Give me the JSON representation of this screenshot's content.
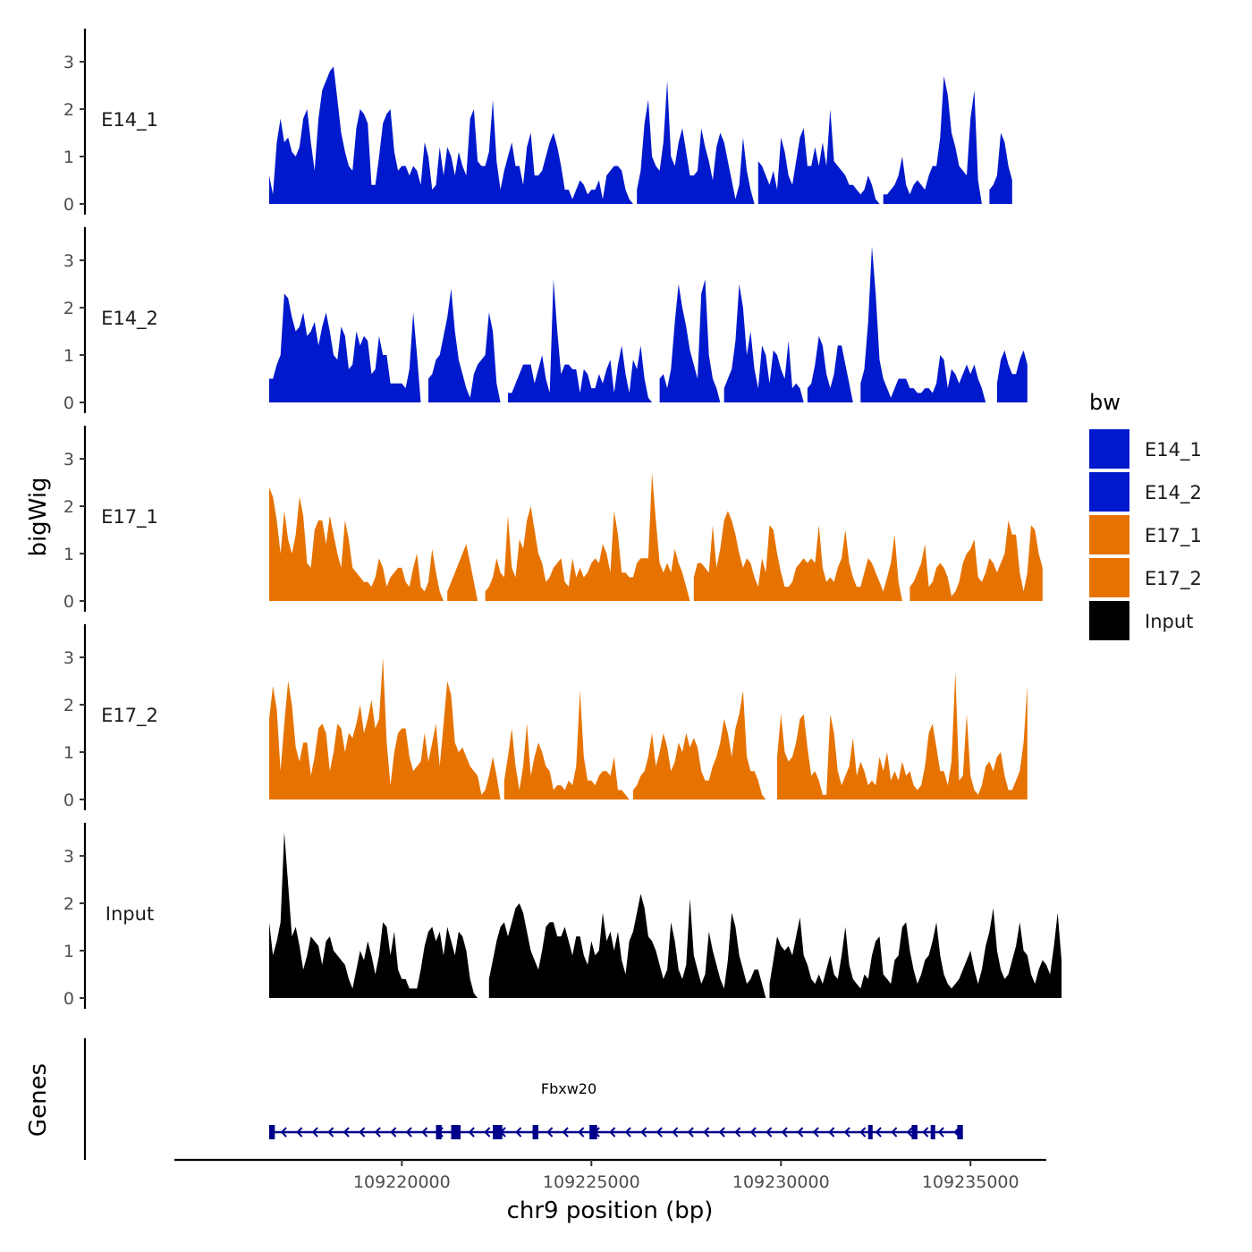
{
  "chart_data": {
    "type": "area",
    "ylabel": "bigWig",
    "xlabel": "chr9 position (bp)",
    "y_ticks": [
      "0",
      "1",
      "2",
      "3"
    ],
    "ylim": [
      0,
      3.7
    ],
    "xlim": [
      109214000,
      109237000
    ],
    "x_ticks": [
      109220000,
      109225000,
      109230000,
      109235000
    ],
    "x_tick_labels": [
      "109220000",
      "109225000",
      "109230000",
      "109235000"
    ],
    "x_step_bp": 100,
    "legend": {
      "title": "bw"
    },
    "colors": {
      "E14": "#0019cc",
      "E17": "#e67300",
      "Input": "#000000",
      "gene": "#00008b"
    },
    "series": [
      {
        "name": "E14_1",
        "color": "#0019cc",
        "x_start": 109216500,
        "values": [
          0.6,
          0.2,
          1.3,
          1.8,
          1.3,
          1.4,
          1.1,
          1.0,
          1.2,
          1.8,
          2.0,
          1.3,
          0.7,
          1.8,
          2.4,
          2.6,
          2.8,
          2.9,
          2.2,
          1.5,
          1.1,
          0.8,
          0.7,
          1.6,
          2.0,
          1.9,
          1.7,
          0.4,
          0.4,
          1.0,
          1.7,
          1.9,
          2.0,
          1.1,
          0.7,
          0.8,
          0.8,
          0.6,
          0.8,
          0.7,
          0.4,
          1.3,
          1.0,
          0.3,
          0.4,
          1.2,
          0.6,
          1.2,
          1.0,
          0.6,
          1.1,
          0.8,
          0.6,
          1.8,
          2.0,
          0.9,
          0.8,
          0.8,
          1.1,
          2.2,
          0.9,
          0.3,
          0.7,
          1.0,
          1.3,
          0.8,
          0.8,
          0.4,
          1.2,
          1.5,
          0.6,
          0.6,
          0.7,
          1.0,
          1.3,
          1.5,
          1.2,
          0.8,
          0.3,
          0.3,
          0.1,
          0.3,
          0.5,
          0.4,
          0.2,
          0.3,
          0.3,
          0.5,
          0.1,
          0.6,
          0.7,
          0.8,
          0.8,
          0.7,
          0.3,
          0.1,
          0.0,
          0.3,
          0.7,
          1.7,
          2.2,
          1.0,
          0.8,
          0.7,
          1.3,
          2.6,
          1.0,
          0.8,
          1.3,
          1.6,
          1.1,
          0.6,
          0.6,
          0.7,
          1.6,
          1.2,
          0.9,
          0.5,
          1.2,
          1.5,
          1.3,
          0.9,
          0.5,
          0.1,
          0.4,
          1.4,
          0.7,
          0.3,
          0.0,
          0.9,
          0.8,
          0.6,
          0.4,
          0.7,
          0.3,
          1.4,
          1.1,
          0.6,
          0.4,
          0.9,
          1.4,
          1.6,
          0.8,
          0.8,
          1.2,
          0.8,
          1.3,
          0.8,
          2.0,
          0.9,
          0.8,
          0.7,
          0.6,
          0.4,
          0.4,
          0.3,
          0.2,
          0.3,
          0.6,
          0.4,
          0.1,
          0.0,
          0.2,
          0.2,
          0.3,
          0.4,
          0.6,
          1.0,
          0.4,
          0.2,
          0.4,
          0.5,
          0.4,
          0.3,
          0.6,
          0.8,
          0.8,
          1.4,
          2.7,
          2.3,
          1.5,
          1.2,
          0.8,
          0.7,
          0.6,
          1.8,
          2.4,
          0.5,
          0.0,
          0.0,
          0.3,
          0.4,
          0.6,
          1.5,
          1.3,
          0.8,
          0.5
        ]
      },
      {
        "name": "E14_2",
        "color": "#0019cc",
        "x_start": 109216500,
        "values": [
          0.5,
          0.5,
          0.8,
          1.0,
          2.3,
          2.2,
          1.8,
          1.5,
          1.6,
          1.9,
          1.4,
          1.5,
          1.7,
          1.2,
          1.6,
          1.9,
          1.5,
          1.0,
          0.9,
          1.6,
          1.4,
          0.7,
          0.8,
          1.5,
          1.2,
          1.4,
          1.3,
          0.6,
          0.7,
          1.4,
          1.0,
          1.0,
          0.4,
          0.4,
          0.4,
          0.4,
          0.3,
          0.7,
          1.9,
          1.0,
          0.0,
          0.0,
          0.5,
          0.6,
          0.9,
          1.0,
          1.4,
          1.8,
          2.4,
          1.5,
          0.9,
          0.6,
          0.3,
          0.1,
          0.6,
          0.8,
          0.9,
          1.0,
          1.9,
          1.5,
          0.4,
          0.0,
          0.0,
          0.2,
          0.2,
          0.4,
          0.6,
          0.8,
          0.8,
          0.8,
          0.4,
          0.7,
          1.0,
          0.5,
          0.2,
          2.6,
          1.5,
          0.6,
          0.8,
          0.8,
          0.7,
          0.7,
          0.2,
          0.7,
          0.6,
          0.3,
          0.3,
          0.6,
          0.4,
          0.7,
          0.9,
          0.2,
          0.8,
          1.2,
          0.6,
          0.2,
          0.9,
          0.7,
          1.2,
          0.5,
          0.1,
          0.0,
          0.0,
          0.5,
          0.6,
          0.3,
          0.7,
          1.7,
          2.5,
          2.0,
          1.6,
          1.1,
          0.8,
          0.5,
          2.3,
          2.6,
          1.0,
          0.5,
          0.3,
          0.0,
          0.3,
          0.5,
          0.7,
          1.3,
          2.5,
          2.0,
          1.0,
          1.5,
          0.7,
          0.3,
          1.2,
          1.0,
          0.4,
          1.1,
          1.0,
          0.7,
          0.5,
          1.3,
          0.3,
          0.4,
          0.3,
          0.0,
          0.3,
          0.4,
          0.8,
          1.4,
          1.2,
          0.6,
          0.3,
          0.6,
          1.2,
          1.2,
          0.8,
          0.4,
          0.0,
          0.0,
          0.4,
          0.7,
          1.7,
          3.3,
          2.3,
          0.9,
          0.5,
          0.3,
          0.1,
          0.3,
          0.5,
          0.5,
          0.5,
          0.3,
          0.3,
          0.2,
          0.2,
          0.3,
          0.3,
          0.2,
          0.4,
          1.0,
          0.9,
          0.3,
          0.7,
          0.6,
          0.4,
          0.6,
          0.8,
          0.6,
          0.8,
          0.5,
          0.3,
          0.0,
          0.0,
          0.0,
          0.4,
          0.9,
          1.1,
          0.8,
          0.6,
          0.6,
          0.9,
          1.1,
          0.8
        ]
      },
      {
        "name": "E17_1",
        "color": "#e67300",
        "x_start": 109216500,
        "values": [
          2.4,
          2.2,
          1.7,
          1.0,
          1.9,
          1.3,
          1.0,
          1.4,
          2.2,
          1.8,
          0.8,
          0.7,
          1.5,
          1.7,
          1.7,
          1.2,
          1.8,
          1.4,
          1.0,
          0.7,
          1.7,
          1.3,
          0.7,
          0.6,
          0.5,
          0.4,
          0.4,
          0.3,
          0.5,
          0.9,
          0.7,
          0.3,
          0.5,
          0.6,
          0.7,
          0.7,
          0.4,
          0.3,
          0.7,
          1.0,
          0.3,
          0.2,
          0.4,
          1.1,
          0.6,
          0.2,
          0.0,
          0.2,
          0.4,
          0.6,
          0.8,
          1.0,
          1.2,
          0.8,
          0.4,
          0.0,
          0.0,
          0.2,
          0.3,
          0.5,
          0.9,
          0.6,
          0.5,
          1.8,
          0.7,
          0.5,
          1.3,
          1.1,
          1.7,
          2.0,
          1.5,
          1.0,
          0.8,
          0.4,
          0.5,
          0.7,
          0.8,
          0.9,
          0.4,
          0.3,
          0.9,
          0.5,
          0.7,
          0.5,
          0.6,
          0.8,
          0.9,
          0.8,
          1.2,
          1.0,
          0.6,
          1.9,
          1.4,
          0.6,
          0.6,
          0.5,
          0.5,
          0.8,
          0.9,
          0.9,
          0.9,
          2.7,
          1.7,
          0.8,
          0.6,
          0.8,
          0.6,
          1.1,
          0.8,
          0.6,
          0.3,
          0.0,
          0.5,
          0.8,
          0.8,
          0.7,
          0.6,
          1.6,
          0.7,
          1.1,
          1.7,
          1.9,
          1.7,
          1.4,
          1.0,
          0.7,
          0.9,
          0.8,
          0.5,
          0.3,
          0.9,
          0.6,
          1.6,
          1.5,
          1.0,
          0.6,
          0.3,
          0.3,
          0.4,
          0.7,
          0.8,
          0.9,
          0.8,
          0.9,
          0.8,
          1.6,
          0.7,
          0.4,
          0.5,
          0.4,
          0.7,
          0.9,
          1.5,
          0.8,
          0.5,
          0.3,
          0.3,
          0.6,
          0.9,
          0.8,
          0.6,
          0.4,
          0.2,
          0.5,
          0.8,
          1.4,
          0.4,
          0.0,
          0.0,
          0.3,
          0.4,
          0.6,
          0.8,
          1.2,
          0.3,
          0.4,
          0.7,
          0.8,
          0.7,
          0.5,
          0.1,
          0.2,
          0.4,
          0.8,
          1.0,
          1.1,
          1.3,
          0.5,
          0.4,
          0.6,
          0.9,
          0.8,
          0.6,
          0.8,
          1.0,
          1.7,
          1.4,
          1.4,
          0.6,
          0.2,
          0.6,
          1.6,
          1.5,
          1.0,
          0.7
        ]
      },
      {
        "name": "E17_2",
        "color": "#e67300",
        "x_start": 109216500,
        "values": [
          1.7,
          2.4,
          1.9,
          0.6,
          1.6,
          2.5,
          2.0,
          1.1,
          0.8,
          1.2,
          1.2,
          0.5,
          0.9,
          1.5,
          1.6,
          1.4,
          0.6,
          1.0,
          1.6,
          1.5,
          1.0,
          1.4,
          1.3,
          1.6,
          2.0,
          1.4,
          1.7,
          2.1,
          1.5,
          1.7,
          3.0,
          1.2,
          0.3,
          1.0,
          1.4,
          1.5,
          1.5,
          0.9,
          0.6,
          0.7,
          0.8,
          1.4,
          0.8,
          1.2,
          1.6,
          0.7,
          1.6,
          2.5,
          2.2,
          1.2,
          1.0,
          1.1,
          0.9,
          0.7,
          0.6,
          0.5,
          0.1,
          0.2,
          0.5,
          0.9,
          0.5,
          0.0,
          0.4,
          0.9,
          1.5,
          0.7,
          0.2,
          0.7,
          1.6,
          0.5,
          0.9,
          1.2,
          1.0,
          0.7,
          0.6,
          0.2,
          0.3,
          0.3,
          0.2,
          0.4,
          0.3,
          0.7,
          2.3,
          0.9,
          0.4,
          0.4,
          0.3,
          0.5,
          0.6,
          0.6,
          0.5,
          0.9,
          0.2,
          0.2,
          0.1,
          0.0,
          0.2,
          0.3,
          0.5,
          0.6,
          0.9,
          1.4,
          0.7,
          1.0,
          1.4,
          1.1,
          0.6,
          0.8,
          1.2,
          1.0,
          1.4,
          1.1,
          1.3,
          1.1,
          0.6,
          0.4,
          0.4,
          0.7,
          0.9,
          1.2,
          1.7,
          1.4,
          0.9,
          1.5,
          1.8,
          2.3,
          0.9,
          0.6,
          0.6,
          0.4,
          0.1,
          0.0,
          0.0,
          0.0,
          0.9,
          1.8,
          1.0,
          0.8,
          0.9,
          1.2,
          1.7,
          1.8,
          1.1,
          0.5,
          0.6,
          0.4,
          0.1,
          0.1,
          1.8,
          1.4,
          0.6,
          0.3,
          0.5,
          0.7,
          1.3,
          0.5,
          0.8,
          0.6,
          0.3,
          0.4,
          0.3,
          0.9,
          0.6,
          1.0,
          0.4,
          0.6,
          0.4,
          0.8,
          0.5,
          0.6,
          0.3,
          0.2,
          0.3,
          0.7,
          1.4,
          1.6,
          1.1,
          0.6,
          0.6,
          0.3,
          0.8,
          2.7,
          0.4,
          0.5,
          1.8,
          0.5,
          0.2,
          0.1,
          0.3,
          0.7,
          0.8,
          0.6,
          0.9,
          1.0,
          0.5,
          0.2,
          0.2,
          0.4,
          0.6,
          1.2,
          2.4
        ]
      },
      {
        "name": "Input",
        "color": "#000000",
        "x_start": 109216500,
        "values": [
          1.6,
          0.9,
          1.2,
          1.6,
          3.5,
          2.4,
          1.3,
          1.5,
          1.1,
          0.6,
          0.9,
          1.3,
          1.2,
          1.1,
          0.7,
          1.2,
          1.3,
          1.0,
          0.9,
          0.8,
          0.7,
          0.4,
          0.2,
          0.6,
          1.0,
          0.8,
          1.2,
          0.9,
          0.5,
          0.9,
          1.6,
          1.5,
          0.9,
          1.4,
          0.6,
          0.4,
          0.4,
          0.2,
          0.2,
          0.2,
          0.6,
          1.1,
          1.4,
          1.5,
          1.2,
          1.4,
          0.9,
          1.5,
          1.2,
          0.9,
          1.4,
          1.3,
          1.0,
          0.4,
          0.1,
          0.0,
          0.0,
          0.0,
          0.4,
          0.8,
          1.2,
          1.5,
          1.6,
          1.3,
          1.6,
          1.9,
          2.0,
          1.8,
          1.4,
          1.0,
          0.8,
          0.6,
          1.0,
          1.5,
          1.6,
          1.6,
          1.3,
          1.3,
          1.5,
          1.2,
          0.9,
          1.3,
          1.3,
          0.9,
          0.7,
          1.2,
          0.9,
          1.0,
          1.8,
          1.2,
          1.4,
          1.0,
          1.4,
          0.8,
          0.5,
          1.2,
          1.4,
          1.8,
          2.2,
          1.9,
          1.3,
          1.2,
          1.0,
          0.7,
          0.4,
          0.6,
          1.6,
          1.2,
          0.6,
          0.4,
          0.7,
          2.1,
          0.9,
          0.6,
          0.3,
          0.5,
          1.4,
          1.0,
          0.7,
          0.4,
          0.2,
          0.8,
          1.8,
          1.5,
          0.9,
          0.6,
          0.3,
          0.4,
          0.6,
          0.6,
          0.3,
          0.0,
          0.3,
          0.8,
          1.3,
          1.1,
          1.0,
          1.1,
          0.9,
          1.3,
          1.7,
          0.9,
          0.7,
          0.4,
          0.3,
          0.5,
          0.3,
          0.6,
          0.9,
          0.5,
          0.4,
          0.9,
          1.5,
          0.7,
          0.4,
          0.3,
          0.2,
          0.5,
          0.4,
          0.9,
          1.2,
          1.3,
          0.5,
          0.4,
          0.3,
          0.8,
          0.9,
          1.5,
          1.6,
          1.0,
          0.6,
          0.3,
          0.5,
          0.8,
          0.9,
          1.2,
          1.6,
          0.9,
          0.5,
          0.3,
          0.2,
          0.3,
          0.4,
          0.6,
          0.8,
          1.0,
          0.6,
          0.3,
          0.6,
          1.1,
          1.4,
          1.9,
          1.0,
          0.6,
          0.4,
          0.5,
          0.8,
          1.1,
          1.6,
          1.0,
          0.9,
          0.5,
          0.3,
          0.6,
          0.8,
          0.7,
          0.5,
          1.1,
          1.8,
          0.8
        ]
      }
    ],
    "genes": {
      "label": "Genes",
      "transcript": {
        "name": "Fbxw20",
        "strand": "-",
        "start": 109216550,
        "end": 109234750,
        "exons": [
          [
            109216500,
            109216650
          ],
          [
            109220900,
            109221050
          ],
          [
            109221300,
            109221550
          ],
          [
            109222400,
            109222650
          ],
          [
            109223450,
            109223600
          ],
          [
            109224950,
            109225150
          ],
          [
            109232300,
            109232400
          ],
          [
            109233450,
            109233600
          ],
          [
            109233950,
            109234050
          ],
          [
            109234650,
            109234800
          ]
        ]
      }
    }
  }
}
